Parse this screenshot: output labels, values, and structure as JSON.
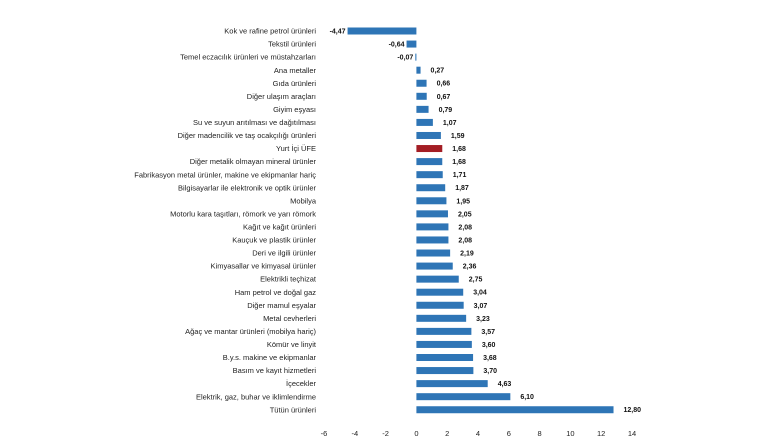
{
  "chart_data": {
    "type": "bar",
    "orientation": "horizontal",
    "title": "",
    "xlabel": "",
    "ylabel": "",
    "xlim": [
      -6,
      14
    ],
    "x_ticks": [
      -6,
      -4,
      -2,
      0,
      2,
      4,
      6,
      8,
      10,
      12,
      14
    ],
    "grid": false,
    "legend": "none",
    "bar_color": "#2e75b6",
    "highlight_color": "#a31d24",
    "highlight_category": "Yurt İçi ÜFE",
    "categories": [
      "Kok ve rafine petrol ürünleri",
      "Tekstil ürünleri",
      "Temel eczacılık ürünleri ve müstahzarları",
      "Ana metaller",
      "Gıda ürünleri",
      "Diğer ulaşım araçları",
      "Giyim eşyası",
      "Su ve suyun arıtılması ve dağıtılması",
      "Diğer madencilik ve taş ocakçılığı ürünleri",
      "Yurt İçi ÜFE",
      "Diğer metalik olmayan mineral ürünler",
      "Fabrikasyon metal ürünler, makine ve ekipmanlar hariç",
      "Bilgisayarlar ile elektronik ve optik ürünler",
      "Mobilya",
      "Motorlu kara taşıtları, römork ve yarı römork",
      "Kağıt ve kağıt ürünleri",
      "Kauçuk ve plastik ürünler",
      "Deri ve ilgili ürünler",
      "Kimyasallar ve kimyasal ürünler",
      "Elektrikli teçhizat",
      "Ham petrol ve doğal gaz",
      "Diğer mamul eşyalar",
      "Metal cevherleri",
      "Ağaç ve mantar ürünleri (mobilya hariç)",
      "Kömür ve linyit",
      "B.y.s. makine ve ekipmanlar",
      "Basım ve kayıt hizmetleri",
      "İçecekler",
      "Elektrik, gaz, buhar ve iklimlendirme",
      "Tütün ürünleri"
    ],
    "values": [
      -4.47,
      -0.64,
      -0.07,
      0.27,
      0.66,
      0.67,
      0.79,
      1.07,
      1.59,
      1.68,
      1.68,
      1.71,
      1.87,
      1.95,
      2.05,
      2.08,
      2.08,
      2.19,
      2.36,
      2.75,
      3.04,
      3.07,
      3.23,
      3.57,
      3.6,
      3.68,
      3.7,
      4.63,
      6.1,
      12.8
    ],
    "value_labels": [
      "-4,47",
      "-0,64",
      "-0,07",
      "0,27",
      "0,66",
      "0,67",
      "0,79",
      "1,07",
      "1,59",
      "1,68",
      "1,68",
      "1,71",
      "1,87",
      "1,95",
      "2,05",
      "2,08",
      "2,08",
      "2,19",
      "2,36",
      "2,75",
      "3,04",
      "3,07",
      "3,23",
      "3,57",
      "3,60",
      "3,68",
      "3,70",
      "4,63",
      "6,10",
      "12,80"
    ]
  }
}
